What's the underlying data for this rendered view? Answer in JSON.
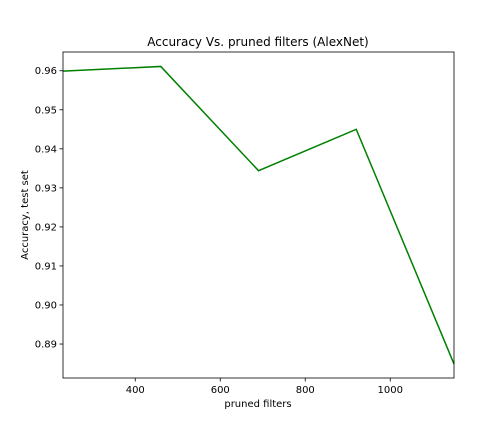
{
  "chart_data": {
    "type": "line",
    "title": "Accuracy Vs. pruned filters (AlexNet)",
    "xlabel": "pruned filters",
    "ylabel": "Accuracy, test set",
    "xlim": [
      230,
      1150
    ],
    "ylim": [
      0.8813,
      0.9648
    ],
    "xticks": [
      400,
      600,
      800,
      1000
    ],
    "yticks": [
      0.89,
      0.9,
      0.91,
      0.92,
      0.93,
      0.94,
      0.95,
      0.96
    ],
    "xtick_labels": [
      "400",
      "600",
      "800",
      "1000"
    ],
    "ytick_labels": [
      "0.89",
      "0.90",
      "0.91",
      "0.92",
      "0.93",
      "0.94",
      "0.95",
      "0.96"
    ],
    "grid": false,
    "series": [
      {
        "color": "#008000",
        "x": [
          230,
          460,
          690,
          920,
          1150
        ],
        "y": [
          0.9599,
          0.9611,
          0.9344,
          0.945,
          0.8849
        ]
      }
    ]
  }
}
